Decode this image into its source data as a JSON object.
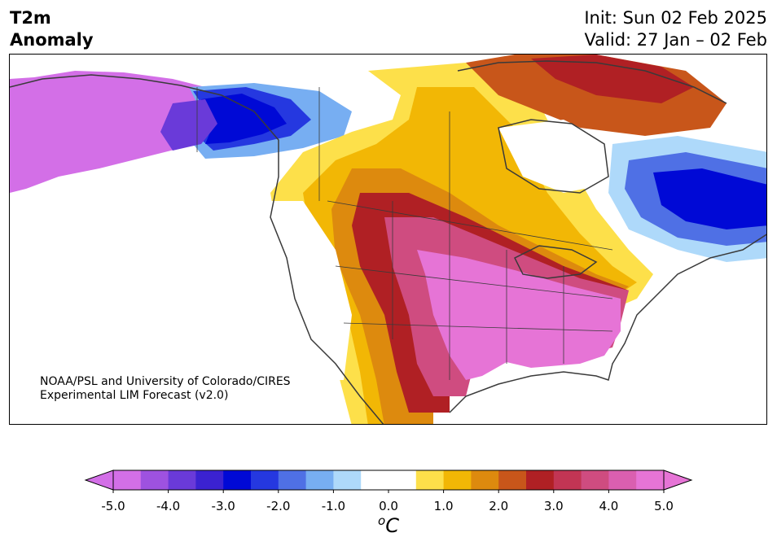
{
  "header": {
    "variable_line1": "T2m",
    "variable_line2": "Anomaly",
    "init": "Init: Sun 02 Feb 2025",
    "valid": "Valid: 27 Jan – 02 Feb"
  },
  "credit": {
    "line1": "NOAA/PSL and University of Colorado/CIRES",
    "line2": "Experimental LIM Forecast (v2.0)"
  },
  "colorbar": {
    "unit_symbol": "o",
    "unit_letter": "C",
    "ticks": [
      "-5.0",
      "-4.0",
      "-3.0",
      "-2.0",
      "-1.0",
      "0.0",
      "1.0",
      "2.0",
      "3.0",
      "4.0",
      "5.0"
    ],
    "bins": [
      {
        "lo": -5.0,
        "hi": -4.5,
        "color": "#d36fe7"
      },
      {
        "lo": -4.5,
        "hi": -4.0,
        "color": "#9e52e0"
      },
      {
        "lo": -4.0,
        "hi": -3.5,
        "color": "#6a3ad9"
      },
      {
        "lo": -3.5,
        "hi": -3.0,
        "color": "#3b22d1"
      },
      {
        "lo": -3.0,
        "hi": -2.5,
        "color": "#0009d6"
      },
      {
        "lo": -2.5,
        "hi": -2.0,
        "color": "#2538e0"
      },
      {
        "lo": -2.0,
        "hi": -1.5,
        "color": "#4f70e5"
      },
      {
        "lo": -1.5,
        "hi": -1.0,
        "color": "#77aef2"
      },
      {
        "lo": -1.0,
        "hi": -0.5,
        "color": "#aed9fa"
      },
      {
        "lo": -0.5,
        "hi": 0.5,
        "color": "#ffffff"
      },
      {
        "lo": 0.5,
        "hi": 1.0,
        "color": "#fde04a"
      },
      {
        "lo": 1.0,
        "hi": 1.5,
        "color": "#f2b705"
      },
      {
        "lo": 1.5,
        "hi": 2.0,
        "color": "#dd8a0e"
      },
      {
        "lo": 2.0,
        "hi": 2.5,
        "color": "#c8561a"
      },
      {
        "lo": 2.5,
        "hi": 3.0,
        "color": "#b02024"
      },
      {
        "lo": 3.0,
        "hi": 3.5,
        "color": "#c23554"
      },
      {
        "lo": 3.5,
        "hi": 4.0,
        "color": "#cf4c80"
      },
      {
        "lo": 4.0,
        "hi": 4.5,
        "color": "#da5fb0"
      },
      {
        "lo": 4.5,
        "hi": 5.0,
        "color": "#e674d6"
      }
    ],
    "extend": "both",
    "under_color": "#d36fe7",
    "over_color": "#e674d6"
  },
  "map": {
    "region": "North America",
    "coastline_color": "#3a3a3a",
    "warm_core": "central and eastern United States",
    "cold_core": "Alaska and eastern Canada"
  }
}
